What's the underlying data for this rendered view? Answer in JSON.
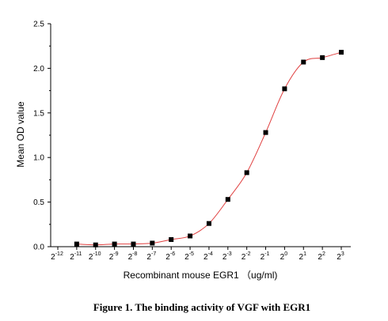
{
  "chart_data": {
    "type": "scatter",
    "title": "",
    "xlabel": "Recombinant mouse EGR1 （ug/ml)",
    "ylabel": "Mean OD value",
    "x_scale": "log2",
    "xlim_exponent": [
      -12,
      3
    ],
    "ylim": [
      0.0,
      2.5
    ],
    "x_tick_labels": [
      {
        "base": "2",
        "exp": "-12"
      },
      {
        "base": "2",
        "exp": "-11"
      },
      {
        "base": "2",
        "exp": "-10"
      },
      {
        "base": "2",
        "exp": "-9"
      },
      {
        "base": "2",
        "exp": "-8"
      },
      {
        "base": "2",
        "exp": "-7"
      },
      {
        "base": "2",
        "exp": "-6"
      },
      {
        "base": "2",
        "exp": "-5"
      },
      {
        "base": "2",
        "exp": "-4"
      },
      {
        "base": "2",
        "exp": "-3"
      },
      {
        "base": "2",
        "exp": "-2"
      },
      {
        "base": "2",
        "exp": "-1"
      },
      {
        "base": "2",
        "exp": "0"
      },
      {
        "base": "2",
        "exp": "1"
      },
      {
        "base": "2",
        "exp": "2"
      },
      {
        "base": "2",
        "exp": "3"
      }
    ],
    "y_ticks": [
      "0.0",
      "0.5",
      "1.0",
      "1.5",
      "2.0",
      "2.5"
    ],
    "series": [
      {
        "x": [
          "2^-11",
          "2^-10",
          "2^-9",
          "2^-8",
          "2^-7",
          "2^-6",
          "2^-5",
          "2^-4",
          "2^-3",
          "2^-2",
          "2^-1",
          "2^0",
          "2^1",
          "2^2",
          "2^3"
        ],
        "y": [
          0.03,
          0.02,
          0.03,
          0.03,
          0.04,
          0.08,
          0.12,
          0.26,
          0.53,
          0.83,
          1.28,
          1.77,
          2.07,
          2.12,
          2.18
        ],
        "marker": "square",
        "marker_color": "#000000",
        "fit_color": "#e04040"
      }
    ]
  },
  "caption": "Figure 1. The binding activity of VGF with EGR1",
  "colors": {
    "fit_curve": "#e04040",
    "points": "#000000",
    "axes": "#000000"
  }
}
